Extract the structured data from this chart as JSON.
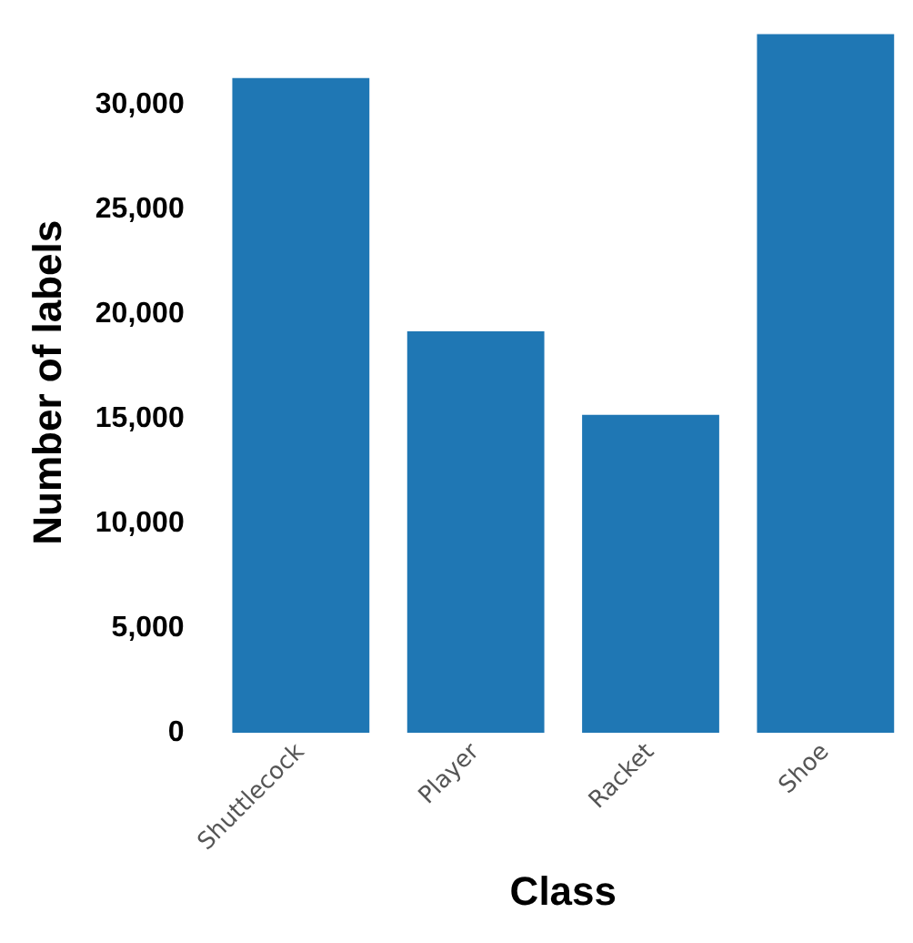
{
  "chart_data": {
    "type": "bar",
    "xlabel": "Class",
    "ylabel": "Number of labels",
    "categories": [
      "Shuttlecock",
      "Player",
      "Racket",
      "Shoe"
    ],
    "values": [
      31300,
      19200,
      15200,
      33400
    ],
    "color": "#1f77b4",
    "ylim": [
      0,
      33500
    ],
    "yticks": [
      {
        "value": 0,
        "label": "0"
      },
      {
        "value": 5000,
        "label": "5,000"
      },
      {
        "value": 10000,
        "label": "10,000"
      },
      {
        "value": 15000,
        "label": "15,000"
      },
      {
        "value": 20000,
        "label": "20,000"
      },
      {
        "value": 25000,
        "label": "25,000"
      },
      {
        "value": 30000,
        "label": "30,000"
      }
    ],
    "grid": false,
    "legend": false
  }
}
